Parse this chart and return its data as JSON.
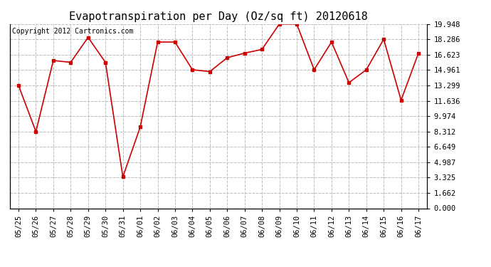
{
  "title": "Evapotranspiration per Day (Oz/sq ft) 20120618",
  "copyright": "Copyright 2012 Cartronics.com",
  "x_labels": [
    "05/25",
    "05/26",
    "05/27",
    "05/28",
    "05/29",
    "05/30",
    "05/31",
    "06/01",
    "06/02",
    "06/03",
    "06/04",
    "06/05",
    "06/06",
    "06/07",
    "06/08",
    "06/09",
    "06/10",
    "06/11",
    "06/12",
    "06/13",
    "06/14",
    "06/15",
    "06/16",
    "06/17"
  ],
  "y_values": [
    13.3,
    8.3,
    16.0,
    15.8,
    18.5,
    15.8,
    3.4,
    8.8,
    18.0,
    18.0,
    15.0,
    14.8,
    16.3,
    16.8,
    17.2,
    19.95,
    19.95,
    15.0,
    18.0,
    13.6,
    15.0,
    18.3,
    11.7,
    16.8
  ],
  "y_ticks": [
    0.0,
    1.662,
    3.325,
    4.987,
    6.649,
    8.312,
    9.974,
    11.636,
    13.299,
    14.961,
    16.623,
    18.286,
    19.948
  ],
  "y_min": 0.0,
  "y_max": 19.948,
  "line_color": "#cc0000",
  "marker_color": "#cc0000",
  "bg_color": "#ffffff",
  "grid_color": "#bbbbbb",
  "title_fontsize": 11,
  "copyright_fontsize": 7,
  "tick_fontsize": 7.5
}
